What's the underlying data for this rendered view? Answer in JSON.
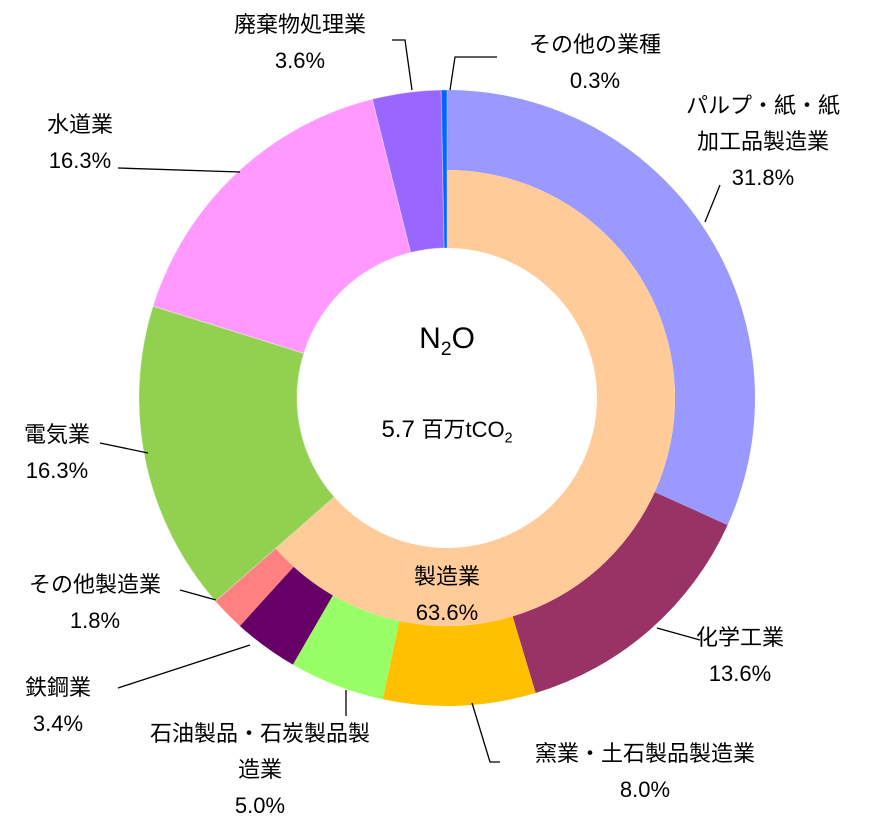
{
  "chart_data": {
    "type": "donut",
    "center_title": "N2O",
    "center_value": 5.7,
    "center_unit": "百万tCO2",
    "categories": [
      "パルプ・紙・紙\n加工品製造業",
      "化学工業",
      "窯業・土石製品製造業",
      "石油製品・石炭製品製\n造業",
      "鉄鋼業",
      "その他製造業",
      "電気業",
      "水道業",
      "廃棄物処理業",
      "その他の業種"
    ],
    "values": [
      31.8,
      13.6,
      8.0,
      5.0,
      3.4,
      1.8,
      16.3,
      16.3,
      3.6,
      0.3
    ],
    "value_labels": [
      "31.8%",
      "13.6%",
      "8.0%",
      "5.0%",
      "3.4%",
      "1.8%",
      "16.3%",
      "16.3%",
      "3.6%",
      "0.3%"
    ],
    "colors": [
      "#9999FF",
      "#993366",
      "#FFC000",
      "#99FF66",
      "#660066",
      "#FF8080",
      "#92D050",
      "#FF99FF",
      "#9966FF",
      "#0066FF"
    ],
    "inner": {
      "categories": [
        "製造業"
      ],
      "values": [
        63.6
      ],
      "value_labels": [
        "63.6%"
      ],
      "colors": [
        "#FFCC99"
      ]
    }
  }
}
